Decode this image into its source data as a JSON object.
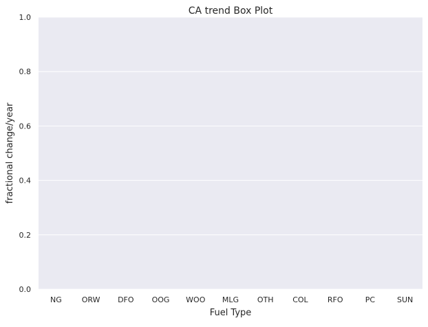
{
  "chart_data": {
    "type": "box",
    "title": "CA trend Box Plot",
    "xlabel": "Fuel Type",
    "ylabel": "fractional change/year",
    "categories": [
      "NG",
      "ORW",
      "DFO",
      "OOG",
      "WOO",
      "MLG",
      "OTH",
      "COL",
      "RFO",
      "PC",
      "SUN"
    ],
    "series": [],
    "ylim": [
      0.0,
      1.0
    ],
    "yticks": [
      "0.0",
      "0.2",
      "0.4",
      "0.6",
      "0.8",
      "1.0"
    ],
    "grid": true,
    "legend": "none",
    "colors": {
      "plot_background": "#eaeaf2",
      "grid": "#ffffff",
      "text": "#262626"
    }
  }
}
